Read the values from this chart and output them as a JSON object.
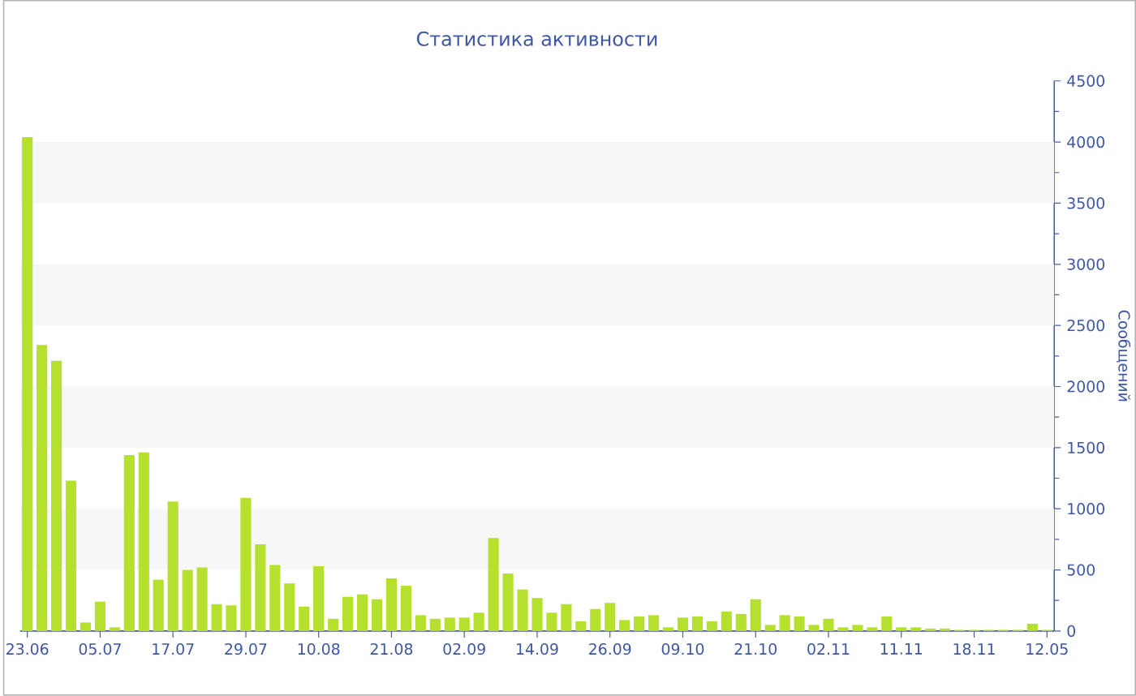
{
  "chart_data": {
    "type": "bar",
    "title": "Статистика активности",
    "ylabel": "Сообщений",
    "categories": [
      "23.06",
      null,
      null,
      null,
      null,
      "05.07",
      null,
      null,
      null,
      null,
      "17.07",
      null,
      null,
      null,
      null,
      "29.07",
      null,
      null,
      null,
      null,
      "10.08",
      null,
      null,
      null,
      null,
      "21.08",
      null,
      null,
      null,
      null,
      "02.09",
      null,
      null,
      null,
      null,
      "14.09",
      null,
      null,
      null,
      null,
      "26.09",
      null,
      null,
      null,
      null,
      "09.10",
      null,
      null,
      null,
      null,
      "21.10",
      null,
      null,
      null,
      null,
      "02.11",
      null,
      null,
      null,
      null,
      "11.11",
      null,
      null,
      null,
      null,
      "18.11",
      null,
      null,
      null,
      null,
      "12.05"
    ],
    "values": [
      4040,
      2340,
      2210,
      1230,
      70,
      240,
      30,
      1440,
      1460,
      420,
      1060,
      500,
      520,
      220,
      210,
      1090,
      710,
      540,
      390,
      200,
      530,
      100,
      280,
      300,
      260,
      430,
      370,
      130,
      100,
      110,
      110,
      150,
      760,
      470,
      340,
      270,
      150,
      220,
      80,
      180,
      230,
      90,
      120,
      130,
      30,
      110,
      120,
      80,
      160,
      140,
      260,
      50,
      130,
      120,
      50,
      100,
      30,
      50,
      30,
      120,
      30,
      30,
      20,
      20,
      10,
      10,
      10,
      10,
      10,
      60,
      10
    ],
    "color": "#b5e02e",
    "ylim": [
      0,
      4500
    ],
    "yticks": [
      0,
      500,
      1000,
      1500,
      2000,
      2500,
      3000,
      3500,
      4000,
      4500
    ],
    "bands": [
      {
        "axis": "y",
        "from": 500,
        "to": 1000,
        "color": "#f7f7f7"
      },
      {
        "axis": "y",
        "from": 1500,
        "to": 2000,
        "color": "#f7f7f7"
      },
      {
        "axis": "y",
        "from": 2500,
        "to": 3000,
        "color": "#f7f7f7"
      },
      {
        "axis": "y",
        "from": 3500,
        "to": 4000,
        "color": "#f7f7f7"
      }
    ]
  }
}
